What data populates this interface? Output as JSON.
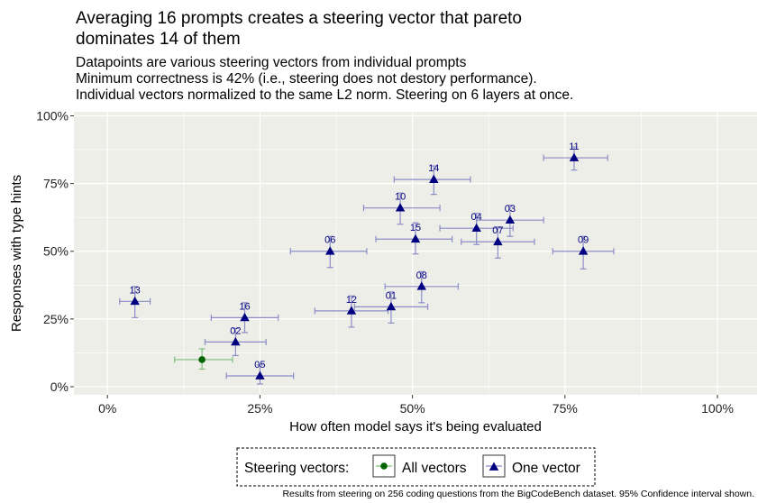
{
  "header": {
    "title_line1": "Averaging 16 prompts creates a steering vector that pareto",
    "title_line2": "dominates 14 of them",
    "subtitle_lines": [
      "Datapoints are various steering vectors from individual prompts",
      "Minimum correctness is 42% (i.e., steering does not destory performance).",
      "Individual vectors normalized to the same L2 norm. Steering on 6 layers at once."
    ]
  },
  "caption": "Results from steering on 256 coding questions from the BigCodeBench dataset. 95% Confidence interval shown.",
  "colors": {
    "panel_bg": "#EEEEE8",
    "grid": "#FFFFFF",
    "one_vector": "#000080",
    "one_vector_err": "#8C8CC8",
    "all_vectors": "#006400",
    "all_vectors_err": "#7FBF7F"
  },
  "chart_data": {
    "type": "scatter",
    "xlabel": "How often model says it's being evaluated",
    "ylabel": "Responses with type hints",
    "xlim": [
      -0.055,
      1.065
    ],
    "ylim": [
      -0.03,
      1.015
    ],
    "x_ticks": [
      0,
      0.25,
      0.5,
      0.75,
      1.0
    ],
    "x_tick_labels": [
      "0%",
      "25%",
      "50%",
      "75%",
      "100%"
    ],
    "y_ticks": [
      0,
      0.25,
      0.5,
      0.75,
      1.0
    ],
    "y_tick_labels": [
      "0%",
      "25%",
      "50%",
      "75%",
      "100%"
    ],
    "grid": true,
    "legend": {
      "title": "Steering vectors:",
      "position": "bottom",
      "entries": [
        {
          "key": "all",
          "label": "All vectors",
          "marker": "circle"
        },
        {
          "key": "one",
          "label": "One vector",
          "marker": "triangle"
        }
      ]
    },
    "series": [
      {
        "name": "All vectors",
        "key": "all",
        "points": [
          {
            "label": "",
            "x": 0.155,
            "y": 0.1,
            "x_lo": 0.11,
            "x_hi": 0.205,
            "y_lo": 0.065,
            "y_hi": 0.14
          }
        ]
      },
      {
        "name": "One vector",
        "key": "one",
        "points": [
          {
            "label": "11",
            "x": 0.765,
            "y": 0.845,
            "x_lo": 0.715,
            "x_hi": 0.82,
            "y_lo": 0.8,
            "y_hi": 0.885
          },
          {
            "label": "14",
            "x": 0.535,
            "y": 0.765,
            "x_lo": 0.47,
            "x_hi": 0.595,
            "y_lo": 0.71,
            "y_hi": 0.815
          },
          {
            "label": "10",
            "x": 0.48,
            "y": 0.66,
            "x_lo": 0.42,
            "x_hi": 0.545,
            "y_lo": 0.6,
            "y_hi": 0.715
          },
          {
            "label": "04",
            "x": 0.605,
            "y": 0.585,
            "x_lo": 0.545,
            "x_hi": 0.665,
            "y_lo": 0.525,
            "y_hi": 0.64
          },
          {
            "label": "03",
            "x": 0.66,
            "y": 0.615,
            "x_lo": 0.605,
            "x_hi": 0.715,
            "y_lo": 0.555,
            "y_hi": 0.67
          },
          {
            "label": "15",
            "x": 0.505,
            "y": 0.545,
            "x_lo": 0.44,
            "x_hi": 0.565,
            "y_lo": 0.49,
            "y_hi": 0.605
          },
          {
            "label": "07",
            "x": 0.64,
            "y": 0.535,
            "x_lo": 0.58,
            "x_hi": 0.7,
            "y_lo": 0.475,
            "y_hi": 0.59
          },
          {
            "label": "06",
            "x": 0.365,
            "y": 0.5,
            "x_lo": 0.3,
            "x_hi": 0.425,
            "y_lo": 0.44,
            "y_hi": 0.555
          },
          {
            "label": "09",
            "x": 0.78,
            "y": 0.5,
            "x_lo": 0.73,
            "x_hi": 0.83,
            "y_lo": 0.435,
            "y_hi": 0.555
          },
          {
            "label": "08",
            "x": 0.515,
            "y": 0.37,
            "x_lo": 0.455,
            "x_hi": 0.575,
            "y_lo": 0.31,
            "y_hi": 0.425
          },
          {
            "label": "01",
            "x": 0.465,
            "y": 0.295,
            "x_lo": 0.405,
            "x_hi": 0.525,
            "y_lo": 0.235,
            "y_hi": 0.35
          },
          {
            "label": "12",
            "x": 0.4,
            "y": 0.28,
            "x_lo": 0.34,
            "x_hi": 0.46,
            "y_lo": 0.22,
            "y_hi": 0.335
          },
          {
            "label": "13",
            "x": 0.045,
            "y": 0.315,
            "x_lo": 0.02,
            "x_hi": 0.07,
            "y_lo": 0.255,
            "y_hi": 0.37
          },
          {
            "label": "16",
            "x": 0.225,
            "y": 0.255,
            "x_lo": 0.17,
            "x_hi": 0.28,
            "y_lo": 0.2,
            "y_hi": 0.31
          },
          {
            "label": "02",
            "x": 0.21,
            "y": 0.165,
            "x_lo": 0.16,
            "x_hi": 0.26,
            "y_lo": 0.115,
            "y_hi": 0.215
          },
          {
            "label": "05",
            "x": 0.25,
            "y": 0.04,
            "x_lo": 0.195,
            "x_hi": 0.305,
            "y_lo": 0.01,
            "y_hi": 0.08
          }
        ]
      }
    ]
  }
}
